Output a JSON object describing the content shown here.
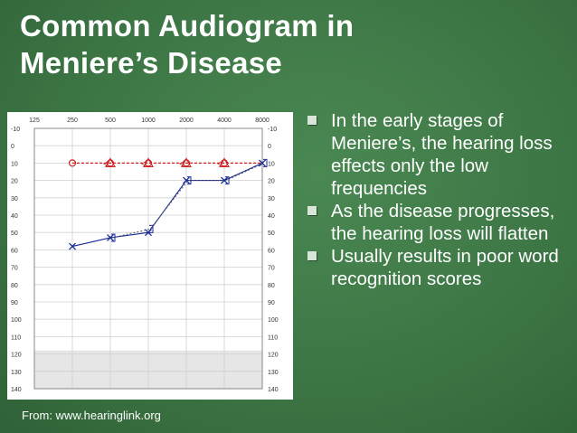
{
  "slide": {
    "title_line1": "Common Audiogram in",
    "title_line2": "Meniere’s Disease",
    "bullets": [
      "In the early stages of Meniere’s, the hearing loss effects only the low frequencies",
      "As the disease progresses, the hearing loss will flatten",
      "Usually results in poor word recognition scores"
    ],
    "source": "From: www.hearinglink.org"
  },
  "colors": {
    "background": "#3f7a47",
    "right_ear": "#cc2222",
    "left_ear": "#1a2a99",
    "bone": "#5a5a66"
  },
  "chart_data": {
    "type": "line",
    "categories": [
      "125",
      "250",
      "500",
      "1000",
      "2000",
      "4000",
      "8000"
    ],
    "y_ticks": [
      "-10",
      "0",
      "10",
      "20",
      "30",
      "40",
      "50",
      "60",
      "70",
      "80",
      "90",
      "100",
      "110",
      "120",
      "130",
      "140"
    ],
    "ylim": [
      -10,
      140
    ],
    "y_inverted": true,
    "grid": true,
    "series": [
      {
        "marker": "circle-triangle",
        "x": [
          "250",
          "500",
          "1000",
          "2000",
          "4000",
          "8000"
        ],
        "values": [
          10,
          10,
          10,
          10,
          10,
          10
        ]
      },
      {
        "marker": "cross",
        "x": [
          "250",
          "500",
          "1000",
          "2000",
          "4000",
          "8000"
        ],
        "values": [
          58,
          53,
          50,
          20,
          20,
          10
        ]
      },
      {
        "marker": "bracket-dashed",
        "x": [
          "500",
          "1000",
          "2000",
          "4000",
          "8000"
        ],
        "values": [
          53,
          48,
          20,
          20,
          10
        ]
      }
    ]
  }
}
